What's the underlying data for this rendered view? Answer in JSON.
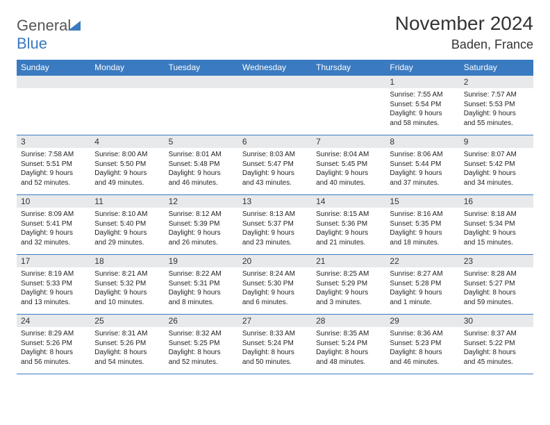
{
  "brand": {
    "name_part1": "General",
    "name_part2": "Blue"
  },
  "colors": {
    "accent": "#3a7ac0",
    "header_text": "#ffffff",
    "daynum_bg": "#e7e9eb",
    "text": "#333333",
    "body_text": "#222222"
  },
  "title": {
    "month": "November 2024",
    "location": "Baden, France"
  },
  "weekdays": [
    "Sunday",
    "Monday",
    "Tuesday",
    "Wednesday",
    "Thursday",
    "Friday",
    "Saturday"
  ],
  "weeks": [
    [
      null,
      null,
      null,
      null,
      null,
      {
        "num": "1",
        "sunrise": "Sunrise: 7:55 AM",
        "sunset": "Sunset: 5:54 PM",
        "daylight": "Daylight: 9 hours and 58 minutes."
      },
      {
        "num": "2",
        "sunrise": "Sunrise: 7:57 AM",
        "sunset": "Sunset: 5:53 PM",
        "daylight": "Daylight: 9 hours and 55 minutes."
      }
    ],
    [
      {
        "num": "3",
        "sunrise": "Sunrise: 7:58 AM",
        "sunset": "Sunset: 5:51 PM",
        "daylight": "Daylight: 9 hours and 52 minutes."
      },
      {
        "num": "4",
        "sunrise": "Sunrise: 8:00 AM",
        "sunset": "Sunset: 5:50 PM",
        "daylight": "Daylight: 9 hours and 49 minutes."
      },
      {
        "num": "5",
        "sunrise": "Sunrise: 8:01 AM",
        "sunset": "Sunset: 5:48 PM",
        "daylight": "Daylight: 9 hours and 46 minutes."
      },
      {
        "num": "6",
        "sunrise": "Sunrise: 8:03 AM",
        "sunset": "Sunset: 5:47 PM",
        "daylight": "Daylight: 9 hours and 43 minutes."
      },
      {
        "num": "7",
        "sunrise": "Sunrise: 8:04 AM",
        "sunset": "Sunset: 5:45 PM",
        "daylight": "Daylight: 9 hours and 40 minutes."
      },
      {
        "num": "8",
        "sunrise": "Sunrise: 8:06 AM",
        "sunset": "Sunset: 5:44 PM",
        "daylight": "Daylight: 9 hours and 37 minutes."
      },
      {
        "num": "9",
        "sunrise": "Sunrise: 8:07 AM",
        "sunset": "Sunset: 5:42 PM",
        "daylight": "Daylight: 9 hours and 34 minutes."
      }
    ],
    [
      {
        "num": "10",
        "sunrise": "Sunrise: 8:09 AM",
        "sunset": "Sunset: 5:41 PM",
        "daylight": "Daylight: 9 hours and 32 minutes."
      },
      {
        "num": "11",
        "sunrise": "Sunrise: 8:10 AM",
        "sunset": "Sunset: 5:40 PM",
        "daylight": "Daylight: 9 hours and 29 minutes."
      },
      {
        "num": "12",
        "sunrise": "Sunrise: 8:12 AM",
        "sunset": "Sunset: 5:39 PM",
        "daylight": "Daylight: 9 hours and 26 minutes."
      },
      {
        "num": "13",
        "sunrise": "Sunrise: 8:13 AM",
        "sunset": "Sunset: 5:37 PM",
        "daylight": "Daylight: 9 hours and 23 minutes."
      },
      {
        "num": "14",
        "sunrise": "Sunrise: 8:15 AM",
        "sunset": "Sunset: 5:36 PM",
        "daylight": "Daylight: 9 hours and 21 minutes."
      },
      {
        "num": "15",
        "sunrise": "Sunrise: 8:16 AM",
        "sunset": "Sunset: 5:35 PM",
        "daylight": "Daylight: 9 hours and 18 minutes."
      },
      {
        "num": "16",
        "sunrise": "Sunrise: 8:18 AM",
        "sunset": "Sunset: 5:34 PM",
        "daylight": "Daylight: 9 hours and 15 minutes."
      }
    ],
    [
      {
        "num": "17",
        "sunrise": "Sunrise: 8:19 AM",
        "sunset": "Sunset: 5:33 PM",
        "daylight": "Daylight: 9 hours and 13 minutes."
      },
      {
        "num": "18",
        "sunrise": "Sunrise: 8:21 AM",
        "sunset": "Sunset: 5:32 PM",
        "daylight": "Daylight: 9 hours and 10 minutes."
      },
      {
        "num": "19",
        "sunrise": "Sunrise: 8:22 AM",
        "sunset": "Sunset: 5:31 PM",
        "daylight": "Daylight: 9 hours and 8 minutes."
      },
      {
        "num": "20",
        "sunrise": "Sunrise: 8:24 AM",
        "sunset": "Sunset: 5:30 PM",
        "daylight": "Daylight: 9 hours and 6 minutes."
      },
      {
        "num": "21",
        "sunrise": "Sunrise: 8:25 AM",
        "sunset": "Sunset: 5:29 PM",
        "daylight": "Daylight: 9 hours and 3 minutes."
      },
      {
        "num": "22",
        "sunrise": "Sunrise: 8:27 AM",
        "sunset": "Sunset: 5:28 PM",
        "daylight": "Daylight: 9 hours and 1 minute."
      },
      {
        "num": "23",
        "sunrise": "Sunrise: 8:28 AM",
        "sunset": "Sunset: 5:27 PM",
        "daylight": "Daylight: 8 hours and 59 minutes."
      }
    ],
    [
      {
        "num": "24",
        "sunrise": "Sunrise: 8:29 AM",
        "sunset": "Sunset: 5:26 PM",
        "daylight": "Daylight: 8 hours and 56 minutes."
      },
      {
        "num": "25",
        "sunrise": "Sunrise: 8:31 AM",
        "sunset": "Sunset: 5:26 PM",
        "daylight": "Daylight: 8 hours and 54 minutes."
      },
      {
        "num": "26",
        "sunrise": "Sunrise: 8:32 AM",
        "sunset": "Sunset: 5:25 PM",
        "daylight": "Daylight: 8 hours and 52 minutes."
      },
      {
        "num": "27",
        "sunrise": "Sunrise: 8:33 AM",
        "sunset": "Sunset: 5:24 PM",
        "daylight": "Daylight: 8 hours and 50 minutes."
      },
      {
        "num": "28",
        "sunrise": "Sunrise: 8:35 AM",
        "sunset": "Sunset: 5:24 PM",
        "daylight": "Daylight: 8 hours and 48 minutes."
      },
      {
        "num": "29",
        "sunrise": "Sunrise: 8:36 AM",
        "sunset": "Sunset: 5:23 PM",
        "daylight": "Daylight: 8 hours and 46 minutes."
      },
      {
        "num": "30",
        "sunrise": "Sunrise: 8:37 AM",
        "sunset": "Sunset: 5:22 PM",
        "daylight": "Daylight: 8 hours and 45 minutes."
      }
    ]
  ]
}
